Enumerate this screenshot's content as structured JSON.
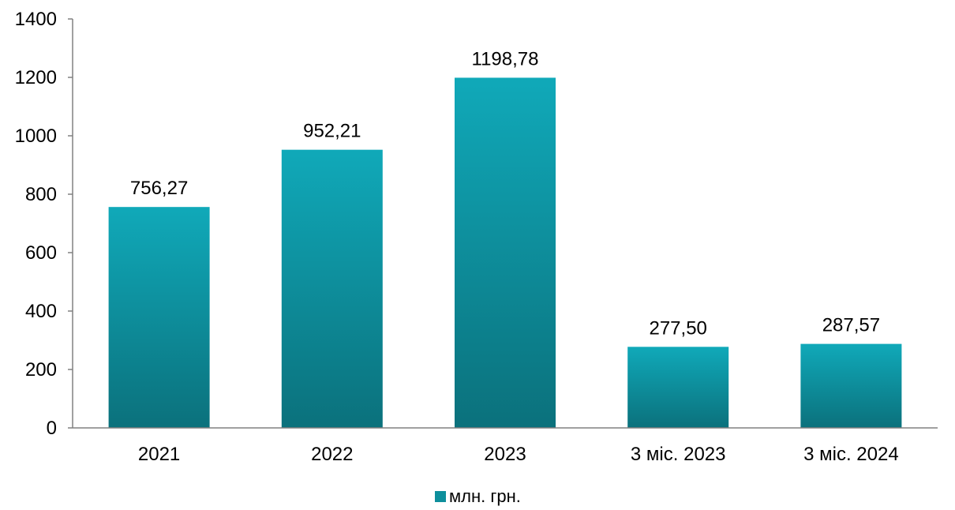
{
  "chart_data": {
    "type": "bar",
    "categories": [
      "2021",
      "2022",
      "2023",
      "3 міс. 2023",
      "3 міс. 2024"
    ],
    "series": [
      {
        "name": "млн. грн.",
        "values": [
          756.27,
          952.21,
          1198.78,
          277.5,
          287.57
        ],
        "labels": [
          "756,27",
          "952,21",
          "1198,78",
          "277,50",
          "287,57"
        ]
      }
    ],
    "title": "",
    "xlabel": "",
    "ylabel": "",
    "ylim": [
      0,
      1400
    ],
    "yticks": [
      0,
      200,
      400,
      600,
      800,
      1000,
      1200,
      1400
    ],
    "grid": false,
    "legend": "bottom-center",
    "colors": {
      "bar_top": "#10a9b9",
      "bar_bottom": "#0b717c",
      "axis": "#808080",
      "legend_marker": "#0e8f9c"
    }
  }
}
